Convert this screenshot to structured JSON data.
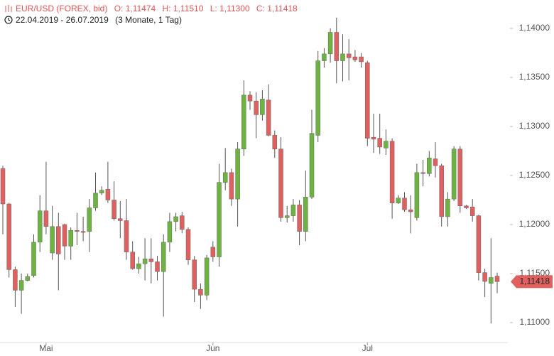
{
  "chart_data": {
    "type": "candlestick",
    "title": "EUR/USD (FOREX, bid)",
    "ohlc_labels": [
      "O: 1,11474",
      "H: 1,11510",
      "L: 1,11300",
      "C: 1,11418"
    ],
    "date_range": "22.04.2019 - 26.07.2019",
    "period": "(3 Monate, 1 Tag)",
    "up_color": "#6db33f",
    "down_color": "#e06060",
    "categories": [
      null,
      null,
      null,
      null,
      null,
      null,
      null,
      "Mai",
      null,
      null,
      null,
      null,
      null,
      null,
      null,
      null,
      null,
      null,
      null,
      null,
      null,
      null,
      null,
      null,
      null,
      null,
      null,
      null,
      null,
      null,
      null,
      null,
      null,
      null,
      "Jun",
      null,
      null,
      null,
      null,
      null,
      null,
      null,
      null,
      null,
      null,
      null,
      null,
      null,
      null,
      null,
      null,
      null,
      null,
      null,
      null,
      null,
      null,
      null,
      null,
      "Jul",
      null,
      null,
      null,
      null,
      null,
      null,
      null,
      null,
      null,
      null,
      null,
      null,
      null,
      null,
      null,
      null,
      null,
      null,
      null,
      null,
      null
    ],
    "open": [
      1.1257,
      1.1221,
      1.1154,
      1.1133,
      1.1143,
      1.1148,
      1.1182,
      1.1214,
      1.1171,
      1.1198,
      1.12,
      1.1178,
      1.1194,
      1.1193,
      1.1193,
      1.1217,
      1.1232,
      1.1236,
      1.1225,
      1.1206,
      1.1204,
      1.1172,
      1.1155,
      1.116,
      1.1165,
      1.1162,
      1.1152,
      1.1182,
      1.1203,
      1.1209,
      1.1195,
      1.1164,
      1.1134,
      1.1128,
      1.1177,
      1.1167,
      1.1243,
      1.1253,
      1.1226,
      1.1277,
      1.1332,
      1.1326,
      1.1312,
      1.1327,
      1.1291,
      1.1277,
      1.1207,
      1.1209,
      1.122,
      1.1193,
      1.1228,
      1.1291,
      1.1367,
      1.1374,
      1.1396,
      1.1367,
      1.1374,
      1.1371,
      1.1371,
      1.1365,
      1.1289,
      1.1288,
      1.1278,
      1.1285,
      1.1222,
      1.1227,
      1.1215,
      1.1207,
      1.1253,
      1.1252,
      1.1267,
      1.126,
      1.1208,
      1.1226,
      1.1277,
      1.1219,
      1.1218,
      1.1209,
      1.1151,
      1.114,
      1.11474
    ],
    "high": [
      1.126,
      1.1222,
      1.1157,
      1.115,
      1.115,
      1.119,
      1.123,
      1.1264,
      1.1219,
      1.1212,
      1.1201,
      1.1197,
      1.1212,
      1.1208,
      1.1226,
      1.1253,
      1.1239,
      1.1264,
      1.1244,
      1.1224,
      1.1226,
      1.1183,
      1.1167,
      1.1186,
      1.1186,
      1.1168,
      1.119,
      1.1212,
      1.1212,
      1.1213,
      1.1197,
      1.1168,
      1.114,
      1.1169,
      1.1183,
      1.1262,
      1.1278,
      1.1257,
      1.1284,
      1.1347,
      1.1336,
      1.1335,
      1.1337,
      1.1343,
      1.1296,
      1.1289,
      1.1219,
      1.1226,
      1.1225,
      1.1255,
      1.1317,
      1.1377,
      1.138,
      1.14,
      1.1411,
      1.1394,
      1.1389,
      1.1378,
      1.1375,
      1.1367,
      1.1313,
      1.1313,
      1.1297,
      1.1288,
      1.123,
      1.1233,
      1.123,
      1.1262,
      1.1266,
      1.1275,
      1.1284,
      1.1262,
      1.1233,
      1.128,
      1.128,
      1.122,
      1.1226,
      1.121,
      1.1155,
      1.1186,
      1.1151
    ],
    "low": [
      1.119,
      1.1146,
      1.1116,
      1.1109,
      1.1142,
      1.1146,
      1.1172,
      1.119,
      1.1164,
      1.1133,
      1.1164,
      1.1164,
      1.1179,
      1.1183,
      1.1172,
      1.1214,
      1.123,
      1.1222,
      1.1204,
      1.1186,
      1.1164,
      1.1154,
      1.115,
      1.1143,
      1.114,
      1.1143,
      1.1106,
      1.1172,
      1.1193,
      1.1191,
      1.1159,
      1.1121,
      1.1114,
      1.1123,
      1.1162,
      1.1157,
      1.1235,
      1.1219,
      1.1198,
      1.127,
      1.1317,
      1.1288,
      1.1306,
      1.129,
      1.1268,
      1.1203,
      1.1202,
      1.1203,
      1.1179,
      1.1183,
      1.1226,
      1.1284,
      1.136,
      1.1365,
      1.1344,
      1.1346,
      1.1347,
      1.1366,
      1.136,
      1.128,
      1.1273,
      1.1272,
      1.1271,
      1.1206,
      1.1221,
      1.1213,
      1.1191,
      1.1204,
      1.1239,
      1.1249,
      1.1248,
      1.1198,
      1.1198,
      1.1224,
      1.1212,
      1.1216,
      1.1203,
      1.1143,
      1.1126,
      1.1099,
      1.113
    ],
    "close": [
      1.1221,
      1.1154,
      1.1133,
      1.1143,
      1.1147,
      1.1182,
      1.1214,
      1.1198,
      1.1198,
      1.117,
      1.1178,
      1.1194,
      1.1193,
      1.1192,
      1.1217,
      1.1232,
      1.1235,
      1.1225,
      1.1206,
      1.1204,
      1.1172,
      1.1155,
      1.116,
      1.1165,
      1.1162,
      1.1152,
      1.1182,
      1.1203,
      1.1208,
      1.1195,
      1.1164,
      1.1134,
      1.1128,
      1.1166,
      1.1167,
      1.1243,
      1.1253,
      1.1226,
      1.1277,
      1.1332,
      1.1326,
      1.1312,
      1.1328,
      1.1291,
      1.1277,
      1.1207,
      1.1209,
      1.122,
      1.1193,
      1.1228,
      1.1293,
      1.1367,
      1.1374,
      1.1396,
      1.1367,
      1.1374,
      1.137,
      1.1368,
      1.1366,
      1.1288,
      1.1287,
      1.1279,
      1.1285,
      1.1222,
      1.1227,
      1.1215,
      1.1213,
      1.1253,
      1.1252,
      1.1268,
      1.126,
      1.1208,
      1.1226,
      1.1277,
      1.1219,
      1.1217,
      1.1209,
      1.1151,
      1.1142,
      1.1146,
      1.11418
    ],
    "ylim": [
      1.108,
      1.142
    ],
    "yticks": [
      {
        "value": 1.11,
        "label": "1,11000"
      },
      {
        "value": 1.115,
        "label": "1,11500"
      },
      {
        "value": 1.12,
        "label": "1,12000"
      },
      {
        "value": 1.125,
        "label": "1,12500"
      },
      {
        "value": 1.13,
        "label": "1,13000"
      },
      {
        "value": 1.135,
        "label": "1,13500"
      },
      {
        "value": 1.14,
        "label": "1,14000"
      }
    ],
    "last_price": {
      "value": 1.11418,
      "label": "1,11418"
    }
  }
}
